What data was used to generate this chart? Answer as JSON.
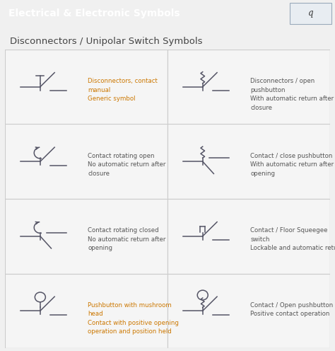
{
  "header_bg": "#2d4059",
  "header_text": "Electrical & Electronic Symbols",
  "header_text_color": "#ffffff",
  "header_fontsize": 10,
  "subheader_text": "Disconnectors / Unipolar Switch Symbols",
  "subheader_color": "#444444",
  "subheader_fontsize": 9.5,
  "page_bg": "#f0f0f0",
  "table_bg": "#ffffff",
  "cell_bg": "#f5f5f5",
  "grid_color": "#cccccc",
  "symbol_color": "#555566",
  "label_color_orange": "#cc7700",
  "label_color_gray": "#555555",
  "label_fontsize": 6.2,
  "rows": 4,
  "cols": 2,
  "label_configs": [
    [
      0,
      0,
      "Disconnectors, contact\nmanual\nGeneric symbol",
      "orange"
    ],
    [
      0,
      1,
      "Disconnectors / open\npushbutton\nWith automatic return after\nclosure",
      "gray"
    ],
    [
      1,
      0,
      "Contact rotating open\nNo automatic return after\nclosure",
      "gray"
    ],
    [
      1,
      1,
      "Contact / close pushbutton\nWith automatic return after\nopening",
      "gray"
    ],
    [
      2,
      0,
      "Contact rotating closed\nNo automatic return after\nopening",
      "gray"
    ],
    [
      2,
      1,
      "Contact / Floor Squeegee\nswitch\nLockable and automatic return",
      "gray"
    ],
    [
      3,
      0,
      "Pushbutton with mushroom\nhead\nContact with positive opening\noperation and position held",
      "orange"
    ],
    [
      3,
      1,
      "Contact / Open pushbutton\nPositive contact operation",
      "gray"
    ]
  ]
}
